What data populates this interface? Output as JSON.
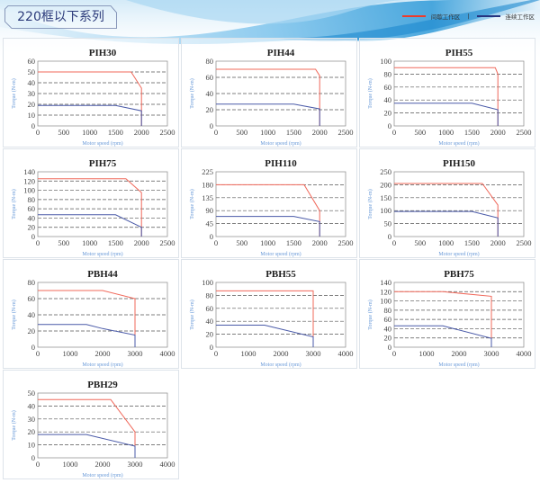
{
  "header": {
    "title": "220框以下系列",
    "legend": [
      {
        "label": "间歇工作区",
        "color": "#ee3b2b"
      },
      {
        "label": "连续工作区",
        "color": "#26337f"
      }
    ],
    "separator": "|"
  },
  "colors": {
    "intermittent": "#f0685a",
    "continuous": "#4a5aa8",
    "axis_label": "#6a9ad8",
    "grid": "#555555"
  },
  "chart_data": [
    {
      "type": "line",
      "title": "PIH30",
      "xlabel": "Motor speed (rpm)",
      "ylabel": "Torque (N-m)",
      "xlim": [
        0,
        2500
      ],
      "xstep": 500,
      "ylim": [
        0,
        60
      ],
      "ystep": 10,
      "grid": "dashed-horizontal",
      "series": [
        {
          "name": "间歇工作区",
          "x": [
            0,
            1800,
            2000,
            2000
          ],
          "y": [
            50,
            50,
            35,
            0
          ]
        },
        {
          "name": "连续工作区",
          "x": [
            0,
            1500,
            2000,
            2000
          ],
          "y": [
            19,
            19,
            14,
            0
          ]
        }
      ]
    },
    {
      "type": "line",
      "title": "PIH44",
      "xlabel": "Motor speed (rpm)",
      "ylabel": "Torque (N-m)",
      "xlim": [
        0,
        2500
      ],
      "xstep": 500,
      "ylim": [
        0,
        80
      ],
      "ystep": 20,
      "grid": "dashed-horizontal",
      "series": [
        {
          "name": "间歇工作区",
          "x": [
            0,
            1920,
            2000,
            2000
          ],
          "y": [
            70,
            70,
            62,
            0
          ]
        },
        {
          "name": "连续工作区",
          "x": [
            0,
            1500,
            2000,
            2000
          ],
          "y": [
            27,
            27,
            21,
            0
          ]
        }
      ]
    },
    {
      "type": "line",
      "title": "PIH55",
      "xlabel": "Motor speed (rpm)",
      "ylabel": "Torque (N-m)",
      "xlim": [
        0,
        2500
      ],
      "xstep": 500,
      "ylim": [
        0,
        100
      ],
      "ystep": 20,
      "grid": "dashed-horizontal",
      "series": [
        {
          "name": "间歇工作区",
          "x": [
            0,
            1950,
            2000,
            2000
          ],
          "y": [
            90,
            90,
            80,
            0
          ]
        },
        {
          "name": "连续工作区",
          "x": [
            0,
            1500,
            2000,
            2000
          ],
          "y": [
            35,
            35,
            25,
            0
          ]
        }
      ]
    },
    {
      "type": "line",
      "title": "PIH75",
      "xlabel": "Motor speed (rpm)",
      "ylabel": "Torque (N-m)",
      "xlim": [
        0,
        2500
      ],
      "xstep": 500,
      "ylim": [
        0,
        140
      ],
      "ystep": 20,
      "grid": "dashed-horizontal",
      "series": [
        {
          "name": "间歇工作区",
          "x": [
            0,
            1700,
            2000,
            2000
          ],
          "y": [
            125,
            125,
            95,
            0
          ]
        },
        {
          "name": "连续工作区",
          "x": [
            0,
            1500,
            2000,
            2000
          ],
          "y": [
            47,
            47,
            20,
            0
          ]
        }
      ]
    },
    {
      "type": "line",
      "title": "PIH110",
      "xlabel": "Motor speed (rpm)",
      "ylabel": "Torque (N-m)",
      "xlim": [
        0,
        2500
      ],
      "xstep": 500,
      "ylim": [
        0,
        225
      ],
      "ystep": 45,
      "grid": "dashed-horizontal",
      "series": [
        {
          "name": "间歇工作区",
          "x": [
            0,
            1700,
            2000,
            2000
          ],
          "y": [
            180,
            180,
            90,
            0
          ]
        },
        {
          "name": "连续工作区",
          "x": [
            0,
            1500,
            2000,
            2000
          ],
          "y": [
            70,
            70,
            52,
            0
          ]
        }
      ]
    },
    {
      "type": "line",
      "title": "PIH150",
      "xlabel": "Motor speed (rpm)",
      "ylabel": "Torque (N-m)",
      "xlim": [
        0,
        2500
      ],
      "xstep": 500,
      "ylim": [
        0,
        250
      ],
      "ystep": 50,
      "grid": "dashed-horizontal",
      "series": [
        {
          "name": "间歇工作区",
          "x": [
            0,
            1700,
            2000,
            2000
          ],
          "y": [
            205,
            205,
            122,
            0
          ]
        },
        {
          "name": "连续工作区",
          "x": [
            0,
            1500,
            2000,
            2000
          ],
          "y": [
            97,
            97,
            72,
            0
          ]
        }
      ]
    },
    {
      "type": "line",
      "title": "PBH44",
      "xlabel": "Motor speed (rpm)",
      "ylabel": "Torque (N-m)",
      "xlim": [
        0,
        4000
      ],
      "xstep": 1000,
      "ylim": [
        0,
        80
      ],
      "ystep": 20,
      "grid": "dashed-horizontal",
      "series": [
        {
          "name": "间歇工作区",
          "x": [
            0,
            2000,
            3000,
            3000
          ],
          "y": [
            70,
            70,
            60,
            0
          ]
        },
        {
          "name": "连续工作区",
          "x": [
            0,
            1500,
            2000,
            3000,
            3000
          ],
          "y": [
            28,
            28,
            23,
            15,
            0
          ]
        }
      ]
    },
    {
      "type": "line",
      "title": "PBH55",
      "xlabel": "Motor speed (rpm)",
      "ylabel": "Torque (N-m)",
      "xlim": [
        0,
        4000
      ],
      "xstep": 1000,
      "ylim": [
        0,
        100
      ],
      "ystep": 20,
      "grid": "dashed-horizontal",
      "series": [
        {
          "name": "间歇工作区",
          "x": [
            0,
            3000,
            3000
          ],
          "y": [
            87,
            87,
            0
          ]
        },
        {
          "name": "连续工作区",
          "x": [
            0,
            1500,
            3000,
            3000
          ],
          "y": [
            34,
            34,
            16,
            0
          ]
        }
      ]
    },
    {
      "type": "line",
      "title": "PBH75",
      "xlabel": "Motor speed (rpm)",
      "ylabel": "Torque (N-m)",
      "xlim": [
        0,
        4000
      ],
      "xstep": 1000,
      "ylim": [
        0,
        140
      ],
      "ystep": 20,
      "grid": "dashed-horizontal",
      "series": [
        {
          "name": "间歇工作区",
          "x": [
            0,
            1500,
            3000,
            3000
          ],
          "y": [
            120,
            120,
            110,
            0
          ]
        },
        {
          "name": "连续工作区",
          "x": [
            0,
            1500,
            3000,
            3000
          ],
          "y": [
            46,
            46,
            19,
            0
          ]
        }
      ]
    },
    {
      "type": "line",
      "title": "PBH29",
      "xlabel": "Motor speed (rpm)",
      "ylabel": "Torque (N-m)",
      "xlim": [
        0,
        4000
      ],
      "xstep": 1000,
      "ylim": [
        0,
        50
      ],
      "ystep": 10,
      "grid": "dashed-horizontal",
      "series": [
        {
          "name": "间歇工作区",
          "x": [
            0,
            2250,
            3000,
            3000
          ],
          "y": [
            45,
            45,
            20,
            0
          ]
        },
        {
          "name": "连续工作区",
          "x": [
            0,
            1500,
            3000,
            3000
          ],
          "y": [
            18,
            18,
            9,
            0
          ]
        }
      ]
    }
  ]
}
